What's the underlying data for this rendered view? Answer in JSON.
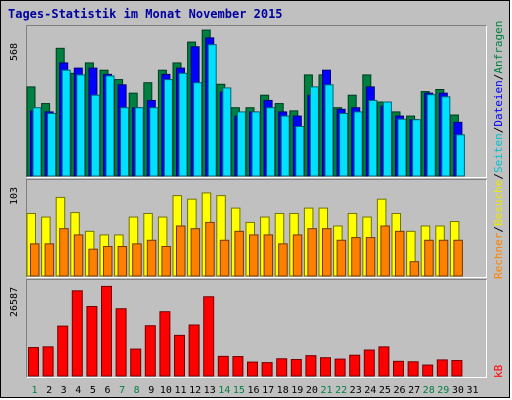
{
  "title": "Tages-Statistik im Monat November 2015",
  "legend": {
    "anfragen": "Anfragen",
    "dateien": "Dateien",
    "seiten": "Seiten",
    "besuche": "Besuche",
    "rechner": "Rechner",
    "kb": "kB",
    "sep1": "/",
    "sep2": "/",
    "sep3": "/",
    "sep4": "/"
  },
  "colors": {
    "anfragen": "#008040",
    "dateien": "#0000ff",
    "seiten": "#00e0ff",
    "besuche": "#ffff00",
    "rechner": "#ff8000",
    "kb": "#ff0000",
    "weekend_day": "#008040",
    "weekday": "#000000"
  },
  "chart_data": [
    {
      "type": "bar",
      "name": "hits-files-pages",
      "ymax_label": "568",
      "ylim": [
        0,
        568
      ],
      "x": [
        1,
        2,
        3,
        4,
        5,
        6,
        7,
        8,
        9,
        10,
        11,
        12,
        13,
        14,
        15,
        16,
        17,
        18,
        19,
        20,
        21,
        22,
        23,
        24,
        25,
        26,
        27,
        28,
        29,
        30,
        31
      ],
      "series": [
        {
          "name": "Anfragen",
          "values": [
            342,
            278,
            490,
            394,
            434,
            406,
            370,
            318,
            358,
            406,
            434,
            514,
            560,
            352,
            262,
            262,
            310,
            278,
            250,
            388,
            388,
            262,
            310,
            388,
            284,
            246,
            230,
            324,
            332,
            234,
            0
          ]
        },
        {
          "name": "Dateien",
          "values": [
            250,
            246,
            434,
            414,
            414,
            390,
            350,
            262,
            290,
            390,
            414,
            496,
            530,
            322,
            230,
            246,
            290,
            246,
            230,
            310,
            406,
            256,
            262,
            342,
            268,
            230,
            216,
            318,
            318,
            206,
            0
          ]
        },
        {
          "name": "Seiten",
          "values": [
            262,
            240,
            406,
            388,
            310,
            384,
            262,
            262,
            262,
            370,
            394,
            358,
            504,
            338,
            246,
            246,
            262,
            230,
            190,
            342,
            350,
            240,
            246,
            290,
            284,
            218,
            216,
            312,
            304,
            158,
            0
          ]
        }
      ]
    },
    {
      "type": "bar",
      "name": "visits-hosts",
      "ymax_label": "103",
      "ylim": [
        0,
        103
      ],
      "x": [
        1,
        2,
        3,
        4,
        5,
        6,
        7,
        8,
        9,
        10,
        11,
        12,
        13,
        14,
        15,
        16,
        17,
        18,
        19,
        20,
        21,
        22,
        23,
        24,
        25,
        26,
        27,
        28,
        29,
        30,
        31
      ],
      "series": [
        {
          "name": "Besuche",
          "values": [
            70,
            66,
            88,
            71,
            50,
            46,
            46,
            66,
            70,
            66,
            90,
            86,
            93,
            90,
            76,
            60,
            66,
            70,
            70,
            76,
            76,
            56,
            70,
            66,
            86,
            70,
            50,
            56,
            56,
            61,
            0
          ]
        },
        {
          "name": "Rechner",
          "values": [
            36,
            36,
            53,
            46,
            30,
            33,
            33,
            36,
            40,
            33,
            56,
            53,
            60,
            40,
            50,
            46,
            46,
            36,
            46,
            53,
            53,
            40,
            43,
            43,
            56,
            50,
            16,
            40,
            40,
            40,
            0
          ]
        }
      ]
    },
    {
      "type": "bar",
      "name": "kilobytes",
      "ymax_label": "26587",
      "ylim": [
        0,
        26587
      ],
      "x": [
        1,
        2,
        3,
        4,
        5,
        6,
        7,
        8,
        9,
        10,
        11,
        12,
        13,
        14,
        15,
        16,
        17,
        18,
        19,
        20,
        21,
        22,
        23,
        24,
        25,
        26,
        27,
        28,
        29,
        30,
        31
      ],
      "series": [
        {
          "name": "kB",
          "values": [
            8220,
            8430,
            14420,
            24620,
            20080,
            25890,
            19440,
            7780,
            14530,
            18580,
            11740,
            14740,
            22900,
            5670,
            5620,
            4020,
            3870,
            4980,
            4770,
            5880,
            5290,
            4890,
            6000,
            7510,
            8420,
            4240,
            4110,
            3160,
            4650,
            4470,
            0
          ]
        }
      ]
    }
  ],
  "xaxis": {
    "labels": [
      "1",
      "2",
      "3",
      "4",
      "5",
      "6",
      "7",
      "8",
      "9",
      "10",
      "11",
      "12",
      "13",
      "14",
      "15",
      "16",
      "17",
      "18",
      "19",
      "20",
      "21",
      "22",
      "23",
      "24",
      "25",
      "26",
      "27",
      "28",
      "29",
      "30",
      "31"
    ],
    "weekend": [
      1,
      7,
      8,
      14,
      15,
      21,
      22,
      28,
      29
    ]
  }
}
